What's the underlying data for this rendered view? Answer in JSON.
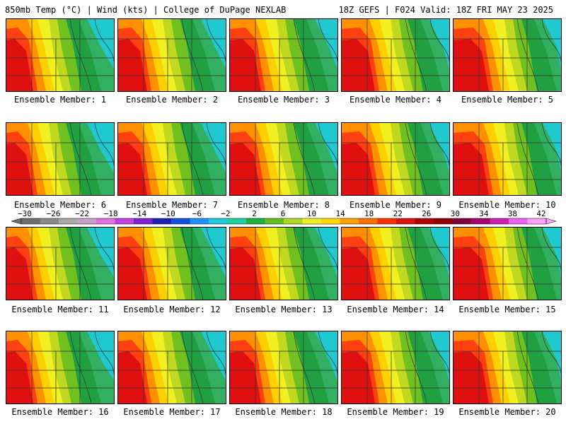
{
  "header": {
    "left_title": "850mb Temp (°C) | Wind (kts) | College of DuPage NEXLAB",
    "right_title": "18Z GEFS | F024 Valid: 18Z FRI MAY 23 2025"
  },
  "colorbar": {
    "tick_labels": [
      "−30",
      "−26",
      "−22",
      "−18",
      "−14",
      "−10",
      "−6",
      "−2",
      "2",
      "6",
      "10",
      "14",
      "18",
      "22",
      "26",
      "30",
      "34",
      "38",
      "42"
    ],
    "colors": [
      "#6d6d6d",
      "#8a8a8a",
      "#a8a8a8",
      "#c8a0c8",
      "#e070e0",
      "#c040e0",
      "#8020d0",
      "#2020b0",
      "#1050e0",
      "#2090ff",
      "#20c8e0",
      "#20d0a0",
      "#20b040",
      "#60c020",
      "#b0d820",
      "#f0f020",
      "#ffd800",
      "#ffa000",
      "#ff7000",
      "#ff3000",
      "#e01010",
      "#b00000",
      "#900000",
      "#800040",
      "#a00070",
      "#d020b0",
      "#f060f0",
      "#ffa0ff"
    ]
  },
  "panels": [
    {
      "label": "Ensemble Member: 1"
    },
    {
      "label": "Ensemble Member: 2"
    },
    {
      "label": "Ensemble Member: 3"
    },
    {
      "label": "Ensemble Member: 4"
    },
    {
      "label": "Ensemble Member: 5"
    },
    {
      "label": "Ensemble Member: 6"
    },
    {
      "label": "Ensemble Member: 7"
    },
    {
      "label": "Ensemble Member: 8"
    },
    {
      "label": "Ensemble Member: 9"
    },
    {
      "label": "Ensemble Member: 10"
    },
    {
      "label": "Ensemble Member: 11"
    },
    {
      "label": "Ensemble Member: 12"
    },
    {
      "label": "Ensemble Member: 13"
    },
    {
      "label": "Ensemble Member: 14"
    },
    {
      "label": "Ensemble Member: 15"
    },
    {
      "label": "Ensemble Member: 16"
    },
    {
      "label": "Ensemble Member: 17"
    },
    {
      "label": "Ensemble Member: 18"
    },
    {
      "label": "Ensemble Member: 19"
    },
    {
      "label": "Ensemble Member: 20"
    }
  ]
}
